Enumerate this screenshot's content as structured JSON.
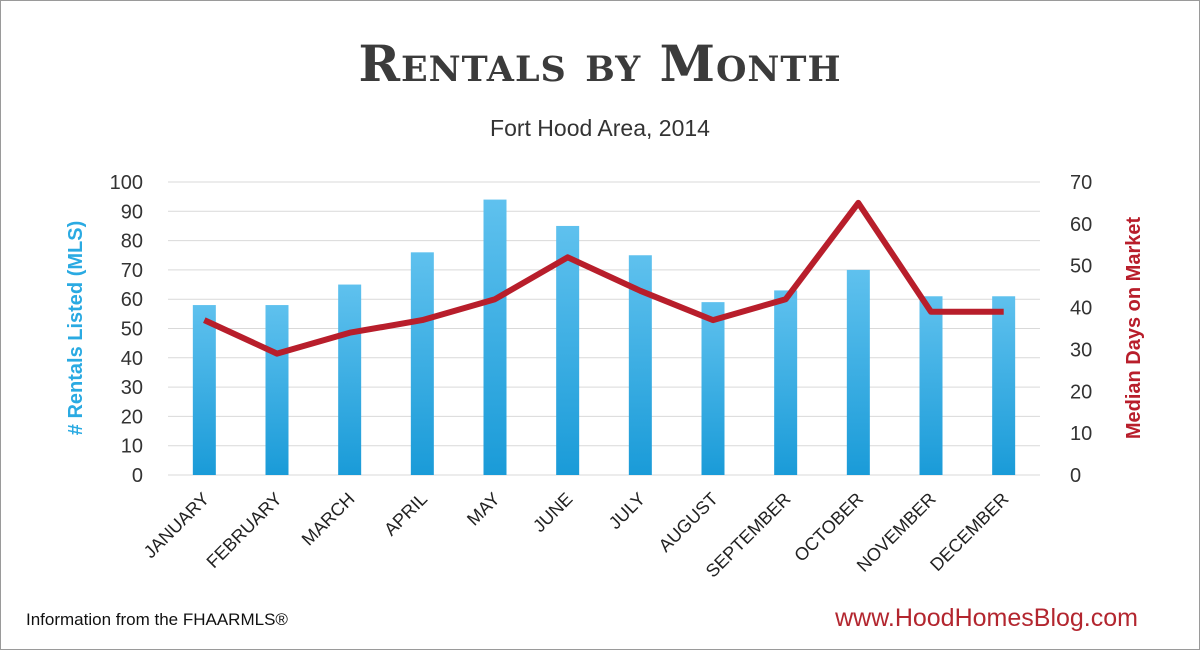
{
  "title": "Rentals by Month",
  "subtitle": "Fort Hood Area, 2014",
  "footer_left": "Information from the FHAARMLS®",
  "footer_right": "www.HoodHomesBlog.com",
  "colors": {
    "bars": "#29a7df",
    "line": "#b81e2b",
    "grid": "#d9d9d9",
    "title": "#3b3b3b"
  },
  "chart_data": {
    "type": "bar",
    "categories": [
      "JANUARY",
      "FEBRUARY",
      "MARCH",
      "APRIL",
      "MAY",
      "JUNE",
      "JULY",
      "AUGUST",
      "SEPTEMBER",
      "OCTOBER",
      "NOVEMBER",
      "DECEMBER"
    ],
    "series": [
      {
        "name": "# Rentals Listed (MLS)",
        "type": "bar",
        "axis": "left",
        "values": [
          58,
          58,
          65,
          76,
          94,
          85,
          75,
          59,
          63,
          70,
          61,
          61
        ]
      },
      {
        "name": "Median Days on Market",
        "type": "line",
        "axis": "right",
        "values": [
          37,
          29,
          34,
          37,
          42,
          52,
          44,
          37,
          42,
          65,
          39,
          39
        ]
      }
    ],
    "ylabel": "# Rentals Listed (MLS)",
    "ylim": [
      0,
      100
    ],
    "yticks": [
      "0",
      "10",
      "20",
      "30",
      "40",
      "50",
      "60",
      "70",
      "80",
      "90",
      "100"
    ],
    "y2label": "Median Days on Market",
    "y2lim": [
      0,
      70
    ],
    "y2ticks": [
      "0",
      "10",
      "20",
      "30",
      "40",
      "50",
      "60",
      "70"
    ],
    "grid": true
  }
}
